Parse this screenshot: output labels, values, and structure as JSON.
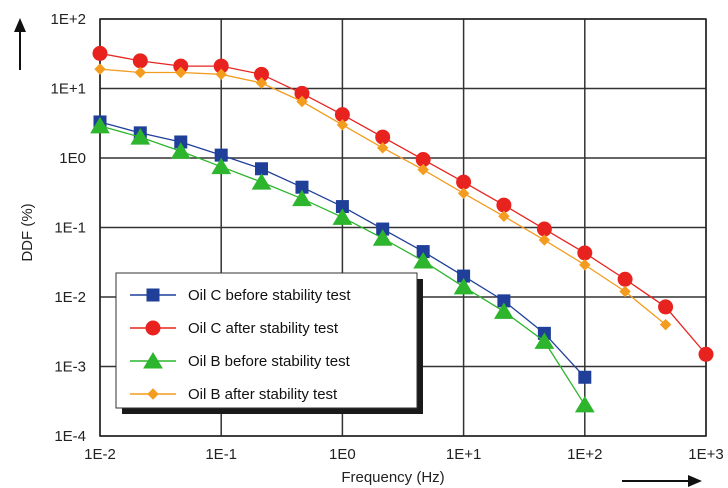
{
  "chart_data": {
    "type": "line",
    "xlabel": "Frequency (Hz)",
    "ylabel": "DDF (%)",
    "xscale": "log",
    "yscale": "log",
    "xlim": [
      0.01,
      1000
    ],
    "ylim": [
      0.0001,
      100
    ],
    "grid": true,
    "legend_position": "bottom-left",
    "x_ticks": [
      {
        "value": 0.01,
        "label": "1E-2"
      },
      {
        "value": 0.1,
        "label": "1E-1"
      },
      {
        "value": 1,
        "label": "1E0"
      },
      {
        "value": 10,
        "label": "1E+1"
      },
      {
        "value": 100,
        "label": "1E+2"
      },
      {
        "value": 1000,
        "label": "1E+3"
      }
    ],
    "y_ticks": [
      {
        "value": 100,
        "label": "1E+2"
      },
      {
        "value": 10,
        "label": "1E+1"
      },
      {
        "value": 1,
        "label": "1E0"
      },
      {
        "value": 0.1,
        "label": "1E-1"
      },
      {
        "value": 0.01,
        "label": "1E-2"
      },
      {
        "value": 0.001,
        "label": "1E-3"
      },
      {
        "value": 0.0001,
        "label": "1E-4"
      }
    ],
    "series": [
      {
        "name": "Oil C before stability test",
        "color": "#1f3f99",
        "marker": "square",
        "x": [
          0.01,
          0.0215,
          0.0464,
          0.1,
          0.215,
          0.464,
          1,
          2.15,
          4.64,
          10,
          21.5,
          46.4,
          100
        ],
        "y": [
          3.3,
          2.3,
          1.7,
          1.1,
          0.7,
          0.38,
          0.2,
          0.095,
          0.045,
          0.02,
          0.0088,
          0.003,
          0.0007
        ]
      },
      {
        "name": "Oil C after stability test",
        "color": "#e8231f",
        "marker": "circle",
        "x": [
          0.01,
          0.0215,
          0.0464,
          0.1,
          0.215,
          0.464,
          1,
          2.15,
          4.64,
          10,
          21.5,
          46.4,
          100,
          215,
          464,
          1000
        ],
        "y": [
          32,
          25,
          21,
          21,
          16,
          8.5,
          4.2,
          2.0,
          0.95,
          0.45,
          0.21,
          0.095,
          0.043,
          0.018,
          0.0072,
          0.0015
        ]
      },
      {
        "name": "Oil B before stability test",
        "color": "#2db52d",
        "marker": "triangle",
        "x": [
          0.01,
          0.0215,
          0.0464,
          0.1,
          0.215,
          0.464,
          1,
          2.15,
          4.64,
          10,
          21.5,
          46.4,
          100
        ],
        "y": [
          2.9,
          2.0,
          1.25,
          0.75,
          0.45,
          0.26,
          0.14,
          0.07,
          0.033,
          0.014,
          0.0062,
          0.0023,
          0.00028
        ]
      },
      {
        "name": "Oil B after stability test",
        "color": "#f39c1f",
        "marker": "diamond",
        "x": [
          0.01,
          0.0215,
          0.0464,
          0.1,
          0.215,
          0.464,
          1,
          2.15,
          4.64,
          10,
          21.5,
          46.4,
          100,
          215,
          464
        ],
        "y": [
          19,
          17,
          17,
          16,
          12,
          6.5,
          3.0,
          1.4,
          0.68,
          0.31,
          0.145,
          0.066,
          0.029,
          0.012,
          0.004
        ]
      }
    ]
  }
}
